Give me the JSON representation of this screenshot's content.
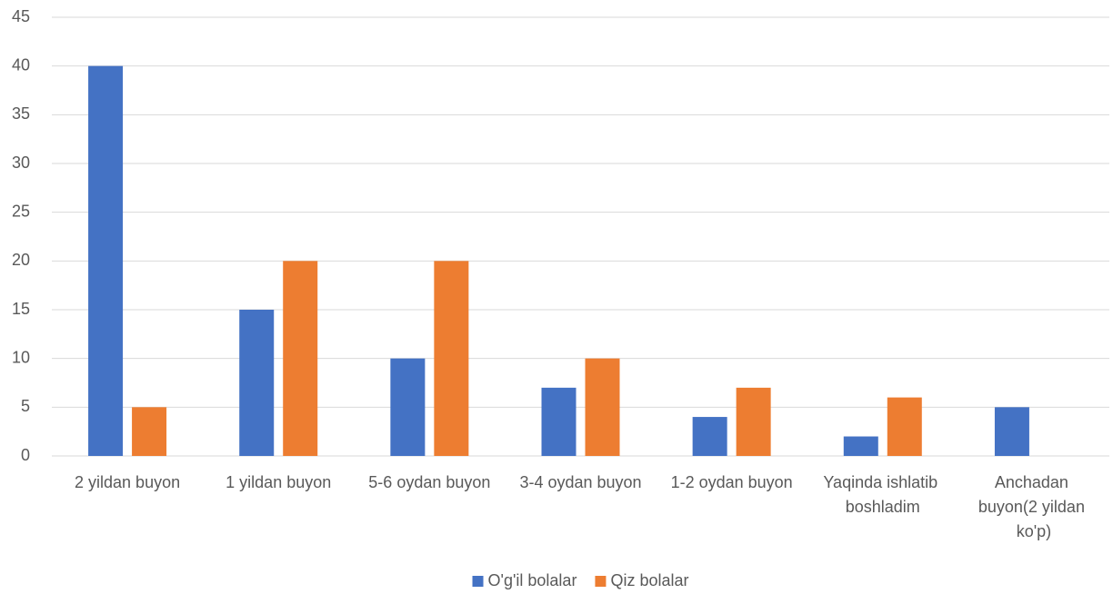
{
  "chart_data": {
    "type": "bar",
    "categories": [
      "2 yildan buyon",
      "1 yildan buyon",
      "5-6 oydan buyon",
      "3-4 oydan buyon",
      "1-2 oydan buyon",
      "Yaqinda ishlatib boshladim",
      "Anchadan buyon(2 yildan ko'p)"
    ],
    "series": [
      {
        "name": "O'g'il bolalar",
        "color": "#4472c4",
        "values": [
          40,
          15,
          10,
          7,
          4,
          2,
          5
        ]
      },
      {
        "name": "Qiz bolalar",
        "color": "#ed7d31",
        "values": [
          5,
          20,
          20,
          10,
          7,
          6,
          0
        ]
      }
    ],
    "ylim": [
      0,
      45
    ],
    "yticks": [
      0,
      5,
      10,
      15,
      20,
      25,
      30,
      35,
      40,
      45
    ],
    "grid": true,
    "legend": "bottom"
  }
}
